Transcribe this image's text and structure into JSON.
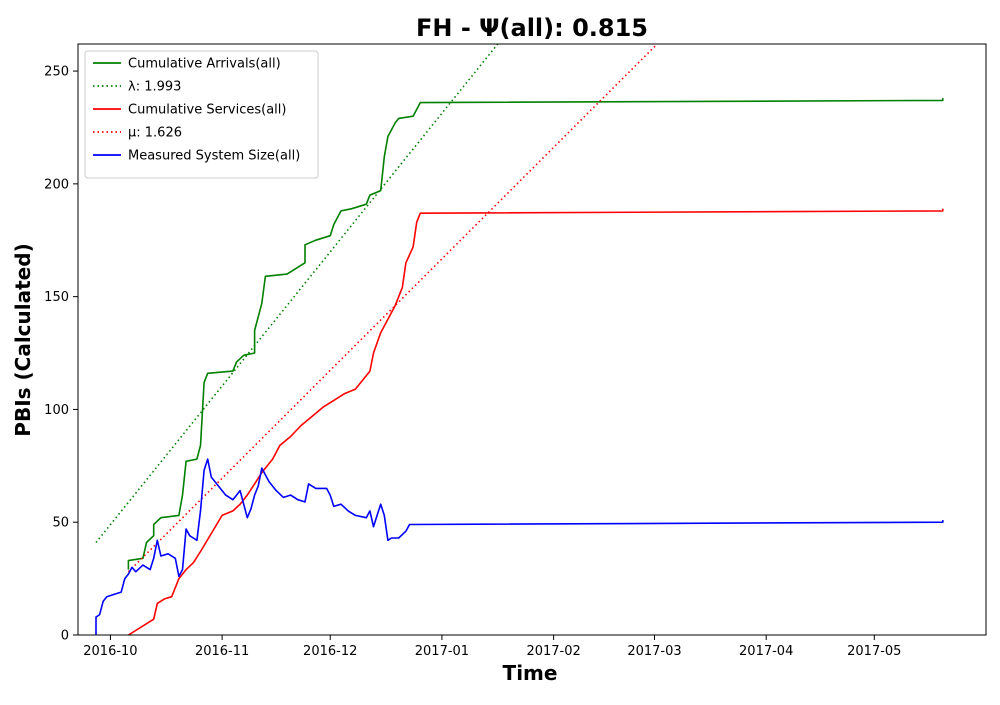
{
  "chart_data": {
    "type": "line",
    "title": "FH -  Ψ(all): 0.815",
    "xlabel": "Time",
    "ylabel": "PBIs (Calculated)",
    "xlim": [
      "2016-09-22",
      "2017-06-01"
    ],
    "ylim": [
      0,
      262
    ],
    "xticks": [
      "2016-10",
      "2016-11",
      "2016-12",
      "2017-01",
      "2017-02",
      "2017-03",
      "2017-04",
      "2017-05"
    ],
    "yticks": [
      0,
      50,
      100,
      150,
      200,
      250
    ],
    "grid": false,
    "legend_position": "upper-left",
    "series": [
      {
        "name": "Cumulative Arrivals(all)",
        "color": "#008000",
        "style": "solid",
        "points": [
          [
            "2016-10-06",
            29
          ],
          [
            "2016-10-06",
            33
          ],
          [
            "2016-10-10",
            34
          ],
          [
            "2016-10-11",
            41
          ],
          [
            "2016-10-13",
            44
          ],
          [
            "2016-10-13",
            49
          ],
          [
            "2016-10-15",
            52
          ],
          [
            "2016-10-20",
            53
          ],
          [
            "2016-10-21",
            62
          ],
          [
            "2016-10-22",
            77
          ],
          [
            "2016-10-25",
            78
          ],
          [
            "2016-10-26",
            84
          ],
          [
            "2016-10-27",
            112
          ],
          [
            "2016-10-28",
            116
          ],
          [
            "2016-11-04",
            117
          ],
          [
            "2016-11-05",
            121
          ],
          [
            "2016-11-07",
            124
          ],
          [
            "2016-11-10",
            125
          ],
          [
            "2016-11-10",
            135
          ],
          [
            "2016-11-12",
            147
          ],
          [
            "2016-11-13",
            159
          ],
          [
            "2016-11-19",
            160
          ],
          [
            "2016-11-20",
            161
          ],
          [
            "2016-11-24",
            165
          ],
          [
            "2016-11-24",
            173
          ],
          [
            "2016-11-27",
            175
          ],
          [
            "2016-12-01",
            177
          ],
          [
            "2016-12-02",
            182
          ],
          [
            "2016-12-04",
            188
          ],
          [
            "2016-12-07",
            189
          ],
          [
            "2016-12-11",
            191
          ],
          [
            "2016-12-12",
            195
          ],
          [
            "2016-12-15",
            197
          ],
          [
            "2016-12-16",
            212
          ],
          [
            "2016-12-17",
            221
          ],
          [
            "2016-12-19",
            227
          ],
          [
            "2016-12-20",
            229
          ],
          [
            "2016-12-24",
            230
          ],
          [
            "2016-12-26",
            236
          ],
          [
            "2017-05-20",
            237
          ],
          [
            "2017-05-20",
            238
          ]
        ]
      },
      {
        "name": "λ: 1.993",
        "color": "#008000",
        "style": "dotted",
        "points": [
          [
            "2016-09-27",
            41
          ],
          [
            "2017-01-17",
            263
          ]
        ]
      },
      {
        "name": "Cumulative Services(all)",
        "color": "#ff0000",
        "style": "solid",
        "points": [
          [
            "2016-10-06",
            0
          ],
          [
            "2016-10-08",
            2
          ],
          [
            "2016-10-11",
            5
          ],
          [
            "2016-10-13",
            7
          ],
          [
            "2016-10-14",
            14
          ],
          [
            "2016-10-16",
            16
          ],
          [
            "2016-10-18",
            17
          ],
          [
            "2016-10-20",
            25
          ],
          [
            "2016-10-22",
            29
          ],
          [
            "2016-10-24",
            32
          ],
          [
            "2016-10-26",
            37
          ],
          [
            "2016-10-29",
            45
          ],
          [
            "2016-11-01",
            53
          ],
          [
            "2016-11-04",
            55
          ],
          [
            "2016-11-06",
            58
          ],
          [
            "2016-11-08",
            62
          ],
          [
            "2016-11-10",
            67
          ],
          [
            "2016-11-12",
            72
          ],
          [
            "2016-11-15",
            78
          ],
          [
            "2016-11-17",
            84
          ],
          [
            "2016-11-20",
            88
          ],
          [
            "2016-11-23",
            93
          ],
          [
            "2016-11-26",
            97
          ],
          [
            "2016-11-29",
            101
          ],
          [
            "2016-12-02",
            104
          ],
          [
            "2016-12-05",
            107
          ],
          [
            "2016-12-08",
            109
          ],
          [
            "2016-12-10",
            113
          ],
          [
            "2016-12-12",
            117
          ],
          [
            "2016-12-13",
            125
          ],
          [
            "2016-12-15",
            134
          ],
          [
            "2016-12-17",
            140
          ],
          [
            "2016-12-19",
            146
          ],
          [
            "2016-12-21",
            154
          ],
          [
            "2016-12-22",
            165
          ],
          [
            "2016-12-24",
            172
          ],
          [
            "2016-12-25",
            183
          ],
          [
            "2016-12-26",
            187
          ],
          [
            "2017-05-20",
            188
          ],
          [
            "2017-05-20",
            189
          ]
        ]
      },
      {
        "name": "μ: 1.626",
        "color": "#ff0000",
        "style": "dotted",
        "points": [
          [
            "2016-10-06",
            28
          ],
          [
            "2017-03-03",
            264
          ]
        ]
      },
      {
        "name": "Measured System Size(all)",
        "color": "#0000ff",
        "style": "solid",
        "points": [
          [
            "2016-09-27",
            0
          ],
          [
            "2016-09-27",
            8
          ],
          [
            "2016-09-28",
            9
          ],
          [
            "2016-09-29",
            15
          ],
          [
            "2016-09-30",
            17
          ],
          [
            "2016-10-02",
            18
          ],
          [
            "2016-10-04",
            19
          ],
          [
            "2016-10-05",
            25
          ],
          [
            "2016-10-06",
            27
          ],
          [
            "2016-10-07",
            30
          ],
          [
            "2016-10-08",
            28
          ],
          [
            "2016-10-10",
            31
          ],
          [
            "2016-10-12",
            29
          ],
          [
            "2016-10-13",
            34
          ],
          [
            "2016-10-14",
            42
          ],
          [
            "2016-10-15",
            35
          ],
          [
            "2016-10-17",
            36
          ],
          [
            "2016-10-19",
            34
          ],
          [
            "2016-10-20",
            26
          ],
          [
            "2016-10-21",
            29
          ],
          [
            "2016-10-22",
            47
          ],
          [
            "2016-10-23",
            44
          ],
          [
            "2016-10-24",
            43
          ],
          [
            "2016-10-25",
            42
          ],
          [
            "2016-10-26",
            55
          ],
          [
            "2016-10-27",
            73
          ],
          [
            "2016-10-28",
            78
          ],
          [
            "2016-10-29",
            70
          ],
          [
            "2016-10-31",
            66
          ],
          [
            "2016-11-02",
            62
          ],
          [
            "2016-11-04",
            60
          ],
          [
            "2016-11-06",
            64
          ],
          [
            "2016-11-08",
            52
          ],
          [
            "2016-11-09",
            56
          ],
          [
            "2016-11-10",
            62
          ],
          [
            "2016-11-11",
            66
          ],
          [
            "2016-11-12",
            74
          ],
          [
            "2016-11-14",
            68
          ],
          [
            "2016-11-16",
            64
          ],
          [
            "2016-11-18",
            61
          ],
          [
            "2016-11-20",
            62
          ],
          [
            "2016-11-22",
            60
          ],
          [
            "2016-11-24",
            59
          ],
          [
            "2016-11-25",
            67
          ],
          [
            "2016-11-27",
            65
          ],
          [
            "2016-11-30",
            65
          ],
          [
            "2016-12-01",
            62
          ],
          [
            "2016-12-02",
            57
          ],
          [
            "2016-12-04",
            58
          ],
          [
            "2016-12-06",
            55
          ],
          [
            "2016-12-08",
            53
          ],
          [
            "2016-12-11",
            52
          ],
          [
            "2016-12-12",
            55
          ],
          [
            "2016-12-13",
            48
          ],
          [
            "2016-12-14",
            53
          ],
          [
            "2016-12-15",
            58
          ],
          [
            "2016-12-16",
            53
          ],
          [
            "2016-12-17",
            42
          ],
          [
            "2016-12-18",
            43
          ],
          [
            "2016-12-20",
            43
          ],
          [
            "2016-12-22",
            46
          ],
          [
            "2016-12-23",
            49
          ],
          [
            "2017-05-20",
            50
          ],
          [
            "2017-05-20",
            51
          ]
        ]
      }
    ]
  }
}
